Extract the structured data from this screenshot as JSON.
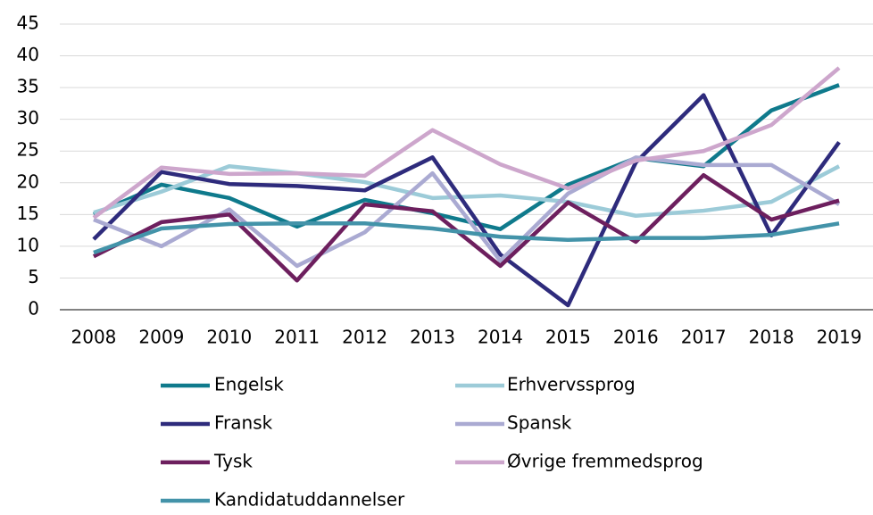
{
  "chart_data": {
    "type": "line",
    "categories": [
      "2008",
      "2009",
      "2010",
      "2011",
      "2012",
      "2013",
      "2014",
      "2015",
      "2016",
      "2017",
      "2018",
      "2019"
    ],
    "series": [
      {
        "name": "Engelsk",
        "color": "#0f7a8c",
        "values": [
          15.0,
          19.7,
          17.6,
          13.1,
          17.3,
          15.2,
          12.7,
          19.7,
          23.9,
          22.6,
          31.4,
          35.4
        ]
      },
      {
        "name": "Erhvervssprog",
        "color": "#9ccbd8",
        "values": [
          15.3,
          18.6,
          22.6,
          21.5,
          20.1,
          17.6,
          18.0,
          17.0,
          14.8,
          15.6,
          17.0,
          22.6
        ]
      },
      {
        "name": "Fransk",
        "color": "#2e2b7c",
        "values": [
          11.1,
          21.7,
          19.8,
          19.5,
          18.8,
          24.0,
          8.7,
          0.7,
          23.2,
          33.8,
          11.7,
          26.4
        ]
      },
      {
        "name": "Spansk",
        "color": "#aaaad2",
        "values": [
          14.2,
          10.0,
          15.8,
          6.9,
          12.2,
          21.5,
          7.7,
          18.3,
          24.0,
          22.8,
          22.8,
          16.6
        ]
      },
      {
        "name": "Tysk",
        "color": "#6d1f5e",
        "values": [
          8.4,
          13.8,
          15.0,
          4.6,
          16.6,
          15.5,
          6.9,
          16.9,
          10.7,
          21.2,
          14.2,
          17.2
        ]
      },
      {
        "name": "Øvrige fremmedsprog",
        "color": "#cda6cc",
        "values": [
          14.5,
          22.4,
          21.4,
          21.5,
          21.1,
          28.3,
          22.9,
          19.1,
          23.5,
          25.0,
          29.1,
          38.1
        ]
      },
      {
        "name": "Kandidatuddannelser",
        "color": "#4393a9",
        "values": [
          9.0,
          12.8,
          13.5,
          13.6,
          13.6,
          12.8,
          11.5,
          11.0,
          11.3,
          11.3,
          11.8,
          13.6
        ]
      }
    ],
    "ylim": [
      0,
      45
    ],
    "yticks": [
      0,
      5,
      10,
      15,
      20,
      25,
      30,
      35,
      40,
      45
    ],
    "grid": true
  }
}
